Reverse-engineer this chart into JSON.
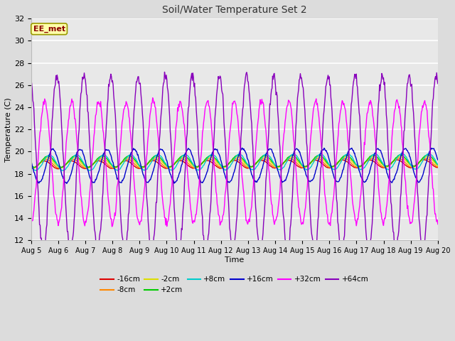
{
  "title": "Soil/Water Temperature Set 2",
  "xlabel": "Time",
  "ylabel": "Temperature (C)",
  "ylim": [
    12,
    32
  ],
  "yticks": [
    12,
    14,
    16,
    18,
    20,
    22,
    24,
    26,
    28,
    30,
    32
  ],
  "fig_width": 6.4,
  "fig_height": 4.8,
  "dpi": 100,
  "bg_color": "#dcdcdc",
  "plot_bg_color": "#e8e8e8",
  "grid_color": "#ffffff",
  "series": [
    {
      "label": "-16cm",
      "color": "#dd0000",
      "amplitude": 0.35,
      "base": 18.8,
      "phase": 0.0,
      "trend": 0.12,
      "lw": 1.0
    },
    {
      "label": "-8cm",
      "color": "#ff8800",
      "amplitude": 0.4,
      "base": 18.9,
      "phase": 0.05,
      "trend": 0.1,
      "lw": 1.0
    },
    {
      "label": "-2cm",
      "color": "#dddd00",
      "amplitude": 0.45,
      "base": 19.0,
      "phase": 0.1,
      "trend": 0.1,
      "lw": 1.0
    },
    {
      "label": "+2cm",
      "color": "#00cc00",
      "amplitude": 0.5,
      "base": 19.1,
      "phase": 0.12,
      "trend": 0.1,
      "lw": 1.0
    },
    {
      "label": "+8cm",
      "color": "#00cccc",
      "amplitude": 0.7,
      "base": 19.0,
      "phase": 0.18,
      "trend": 0.12,
      "lw": 1.0
    },
    {
      "label": "+16cm",
      "color": "#0000cc",
      "amplitude": 1.5,
      "base": 18.7,
      "phase": 0.3,
      "trend": 0.1,
      "lw": 1.0
    },
    {
      "label": "+32cm",
      "color": "#ff00ff",
      "amplitude": 5.5,
      "base": 19.0,
      "phase": 0.0,
      "trend": 0.05,
      "lw": 1.0
    },
    {
      "label": "+64cm",
      "color": "#8800bb",
      "amplitude": 7.8,
      "base": 19.0,
      "phase": 0.45,
      "trend": 0.03,
      "lw": 1.0
    }
  ],
  "legend_ncol_row1": 6,
  "annotation_text": "EE_met",
  "annotation_color": "#8b0000",
  "annotation_bg": "#ffffaa",
  "annotation_edge": "#999900"
}
